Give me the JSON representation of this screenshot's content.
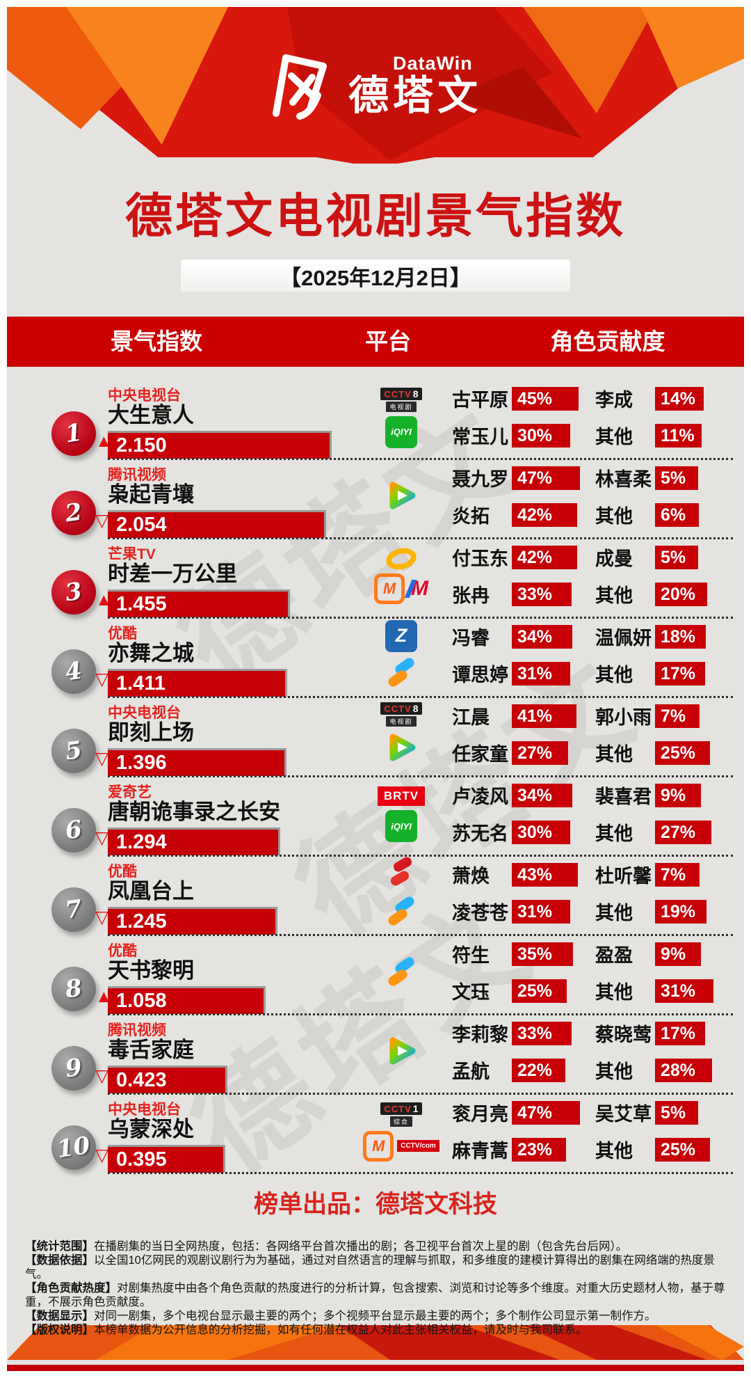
{
  "banner": {
    "brand_en": "DataWin",
    "brand_cn": "德塔文"
  },
  "title": "德塔文电视剧景气指数",
  "date": "【2025年12月2日】",
  "columns": {
    "index": "景气指数",
    "platform": "平台",
    "contribution": "角色贡献度"
  },
  "trend_glyphs": {
    "up": "▲",
    "down": "▽"
  },
  "colors": {
    "accent_red": "#cc0000",
    "bar_red": "#c70008",
    "background": "#e4e3e0",
    "network_red": "#e42320"
  },
  "watermark": "德塔文",
  "platform_icons": {
    "cctv8": {
      "line1_left": "CCTV",
      "line1_right": "8",
      "line2": "电视剧"
    },
    "cctv1": {
      "line1_left": "CCTV",
      "line1_right": "1",
      "line2": "综合"
    },
    "iqiyi": {
      "label": "iQIYI"
    },
    "brtv": {
      "label": "BRTV"
    },
    "cctvcom": {
      "label": "CCTV/com"
    },
    "mgtv": {
      "label": "M"
    },
    "migu": {
      "label": "M"
    },
    "zhejiang": {
      "label": "Z"
    },
    "tencent": {},
    "youku": {},
    "hunantv": {},
    "redswirl": {}
  },
  "rows": [
    {
      "rank": 1,
      "trend": "up",
      "network": "中央电视台",
      "title": "大生意人",
      "index": "2.150",
      "index_value": 2.15,
      "platform_rows": [
        [
          "cctv8"
        ],
        [
          "iqiyi"
        ]
      ],
      "characters": [
        {
          "name": "古平原",
          "pct": 45
        },
        {
          "name": "李成",
          "pct": 14
        },
        {
          "name": "常玉儿",
          "pct": 30
        },
        {
          "name": "其他",
          "pct": 11
        }
      ]
    },
    {
      "rank": 2,
      "trend": "down",
      "network": "腾讯视频",
      "title": "枭起青壤",
      "index": "2.054",
      "index_value": 2.054,
      "platform_rows": [
        [
          "tencent"
        ]
      ],
      "characters": [
        {
          "name": "聂九罗",
          "pct": 47
        },
        {
          "name": "林喜柔",
          "pct": 5
        },
        {
          "name": "炎拓",
          "pct": 42
        },
        {
          "name": "其他",
          "pct": 6
        }
      ]
    },
    {
      "rank": 3,
      "trend": "up",
      "network": "芒果TV",
      "title": "时差一万公里",
      "index": "1.455",
      "index_value": 1.455,
      "platform_rows": [
        [
          "hunantv"
        ],
        [
          "mgtv",
          "migu"
        ]
      ],
      "characters": [
        {
          "name": "付玉东",
          "pct": 42
        },
        {
          "name": "成曼",
          "pct": 5
        },
        {
          "name": "张冉",
          "pct": 33
        },
        {
          "name": "其他",
          "pct": 20
        }
      ]
    },
    {
      "rank": 4,
      "trend": "down",
      "network": "优酷",
      "title": "亦舞之城",
      "index": "1.411",
      "index_value": 1.411,
      "platform_rows": [
        [
          "zhejiang"
        ],
        [
          "youku"
        ]
      ],
      "characters": [
        {
          "name": "冯睿",
          "pct": 34
        },
        {
          "name": "温佩妍",
          "pct": 18
        },
        {
          "name": "谭思婷",
          "pct": 31
        },
        {
          "name": "其他",
          "pct": 17
        }
      ]
    },
    {
      "rank": 5,
      "trend": "down",
      "network": "中央电视台",
      "title": "即刻上场",
      "index": "1.396",
      "index_value": 1.396,
      "platform_rows": [
        [
          "cctv8"
        ],
        [
          "tencent"
        ]
      ],
      "characters": [
        {
          "name": "江晨",
          "pct": 41
        },
        {
          "name": "郭小雨",
          "pct": 7
        },
        {
          "name": "任家童",
          "pct": 27
        },
        {
          "name": "其他",
          "pct": 25
        }
      ]
    },
    {
      "rank": 6,
      "trend": "down",
      "network": "爱奇艺",
      "title": "唐朝诡事录之长安",
      "index": "1.294",
      "index_value": 1.294,
      "platform_rows": [
        [
          "brtv"
        ],
        [
          "iqiyi"
        ]
      ],
      "characters": [
        {
          "name": "卢凌风",
          "pct": 34
        },
        {
          "name": "裴喜君",
          "pct": 9
        },
        {
          "name": "苏无名",
          "pct": 30
        },
        {
          "name": "其他",
          "pct": 27
        }
      ]
    },
    {
      "rank": 7,
      "trend": "down",
      "network": "优酷",
      "title": "凤凰台上",
      "index": "1.245",
      "index_value": 1.245,
      "platform_rows": [
        [
          "redswirl"
        ],
        [
          "youku"
        ]
      ],
      "characters": [
        {
          "name": "萧焕",
          "pct": 43
        },
        {
          "name": "杜听馨",
          "pct": 7
        },
        {
          "name": "凌苍苍",
          "pct": 31
        },
        {
          "name": "其他",
          "pct": 19
        }
      ]
    },
    {
      "rank": 8,
      "trend": "up",
      "network": "优酷",
      "title": "天书黎明",
      "index": "1.058",
      "index_value": 1.058,
      "platform_rows": [
        [
          "youku"
        ]
      ],
      "characters": [
        {
          "name": "符生",
          "pct": 35
        },
        {
          "name": "盈盈",
          "pct": 9
        },
        {
          "name": "文珏",
          "pct": 25
        },
        {
          "name": "其他",
          "pct": 31
        }
      ]
    },
    {
      "rank": 9,
      "trend": "down",
      "network": "腾讯视频",
      "title": "毒舌家庭",
      "index": "0.423",
      "index_value": 0.423,
      "platform_rows": [
        [
          "tencent"
        ]
      ],
      "characters": [
        {
          "name": "李莉黎",
          "pct": 33
        },
        {
          "name": "蔡晓莺",
          "pct": 17
        },
        {
          "name": "孟航",
          "pct": 22
        },
        {
          "name": "其他",
          "pct": 28
        }
      ]
    },
    {
      "rank": 10,
      "trend": "down",
      "network": "中央电视台",
      "title": "乌蒙深处",
      "index": "0.395",
      "index_value": 0.395,
      "platform_rows": [
        [
          "cctv1"
        ],
        [
          "mgtv",
          "cctvcom"
        ]
      ],
      "characters": [
        {
          "name": "衮月亮",
          "pct": 47
        },
        {
          "name": "吴艾草",
          "pct": 5
        },
        {
          "name": "麻青蒿",
          "pct": 23
        },
        {
          "name": "其他",
          "pct": 25
        }
      ]
    }
  ],
  "credit": "榜单出品：德塔文科技",
  "notes": [
    {
      "head": "【统计范围】",
      "body": "在播剧集的当日全网热度，包括：各网络平台首次播出的剧；各卫视平台首次上星的剧（包含先台后网）。"
    },
    {
      "head": "【数据依据】",
      "body": "以全国10亿网民的观剧议剧行为为基础，通过对自然语言的理解与抓取，和多维度的建模计算得出的剧集在网络端的热度景气。"
    },
    {
      "head": "【角色贡献热度】",
      "body": "对剧集热度中由各个角色贡献的热度进行的分析计算，包含搜索、浏览和讨论等多个维度。对重大历史题材人物，基于尊重，不展示角色贡献度。"
    },
    {
      "head": "【数据显示】",
      "body": "对同一剧集，多个电视台显示最主要的两个；多个视频平台显示最主要的两个；多个制作公司显示第一制作方。"
    },
    {
      "head": "【版权说明】",
      "body": "本榜单数据为公开信息的分析挖掘，如有任何潜在权益人对此主张相关权益，请及时与我司联系。"
    }
  ]
}
